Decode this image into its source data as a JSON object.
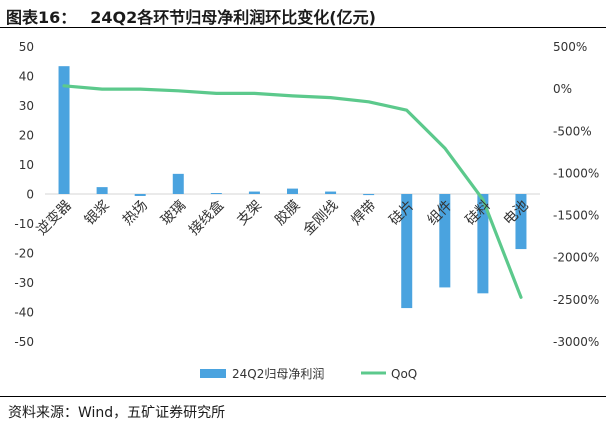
{
  "figure_title_prefix": "图表16：",
  "figure_title": "24Q2各环节归母净利润环比变化(亿元)",
  "source": "资料来源：Wind，五矿证券研究所",
  "chart_data": {
    "type": "bar",
    "categories": [
      "逆变器",
      "银浆",
      "热场",
      "玻璃",
      "接线盒",
      "支架",
      "胶膜",
      "金刚线",
      "焊带",
      "硅片",
      "组件",
      "硅料",
      "电池"
    ],
    "series": [
      {
        "name": "24Q2归母净利润",
        "type": "bar",
        "axis": "left",
        "color": "#4aa3df",
        "values": [
          43.5,
          2.5,
          -0.5,
          7.0,
          0.5,
          1.0,
          2.0,
          1.0,
          -0.2,
          -38.5,
          -31.5,
          -33.5,
          -18.5
        ]
      },
      {
        "name": "QoQ",
        "type": "line",
        "axis": "right",
        "color": "#5cc98c",
        "values": [
          40,
          0,
          0,
          -20,
          -50,
          -50,
          -80,
          -100,
          -150,
          -250,
          -700,
          -1310,
          -2470
        ]
      }
    ],
    "yaxis_left": {
      "ylim": [
        -50,
        50
      ],
      "ticks": [
        50,
        40,
        30,
        20,
        10,
        0,
        -10,
        -20,
        -30,
        -40,
        -50
      ],
      "tick_labels": [
        "50",
        "40",
        "30",
        "20",
        "10",
        "0",
        "-10",
        "-20",
        "-30",
        "-40",
        "-50"
      ]
    },
    "yaxis_right": {
      "ylim": [
        -3000,
        500
      ],
      "ticks": [
        500,
        0,
        -500,
        -1000,
        -1500,
        -2000,
        -2500,
        -3000
      ],
      "tick_labels": [
        "500%",
        "0%",
        "-500%",
        "-1000%",
        "-1500%",
        "-2000%",
        "-2500%",
        "-3000%"
      ]
    },
    "grid": false,
    "legend_position": "bottom"
  }
}
